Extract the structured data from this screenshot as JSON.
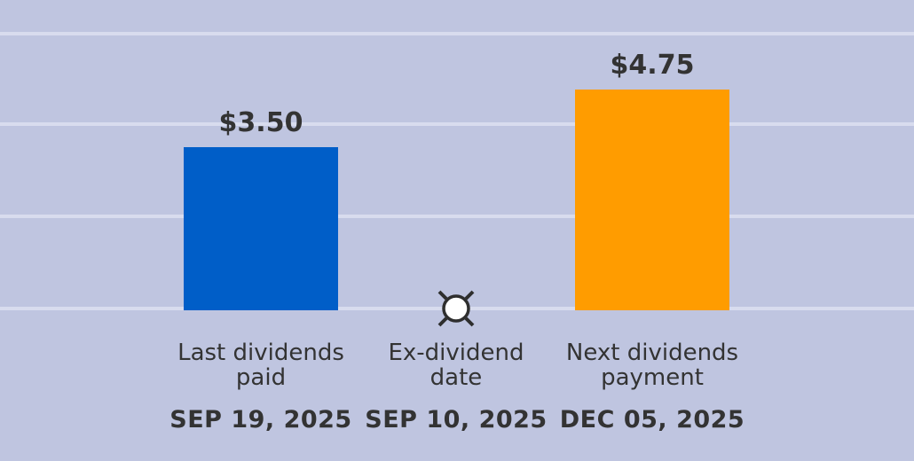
{
  "chart_data": {
    "type": "bar",
    "categories": [
      {
        "label_lines": [
          "Last dividends",
          "paid"
        ],
        "date": "SEP 19, 2025",
        "value": 3.5,
        "value_label": "$3.50",
        "color": "#005ec8",
        "kind": "bar"
      },
      {
        "label_lines": [
          "Ex-dividend",
          "date"
        ],
        "date": "SEP 10, 2025",
        "value": 0,
        "value_label": "",
        "color": "#ffffff",
        "kind": "marker"
      },
      {
        "label_lines": [
          "Next dividends",
          "payment"
        ],
        "date": "DEC 05, 2025",
        "value": 4.75,
        "value_label": "$4.75",
        "color": "#ff9c00",
        "kind": "bar"
      }
    ],
    "ylim": [
      0,
      6
    ],
    "grid": true,
    "colors": {
      "background": "#bfc5e0",
      "grid": "#d8dcee",
      "text": "#333333",
      "marker_stroke": "#2e2e2e"
    }
  }
}
